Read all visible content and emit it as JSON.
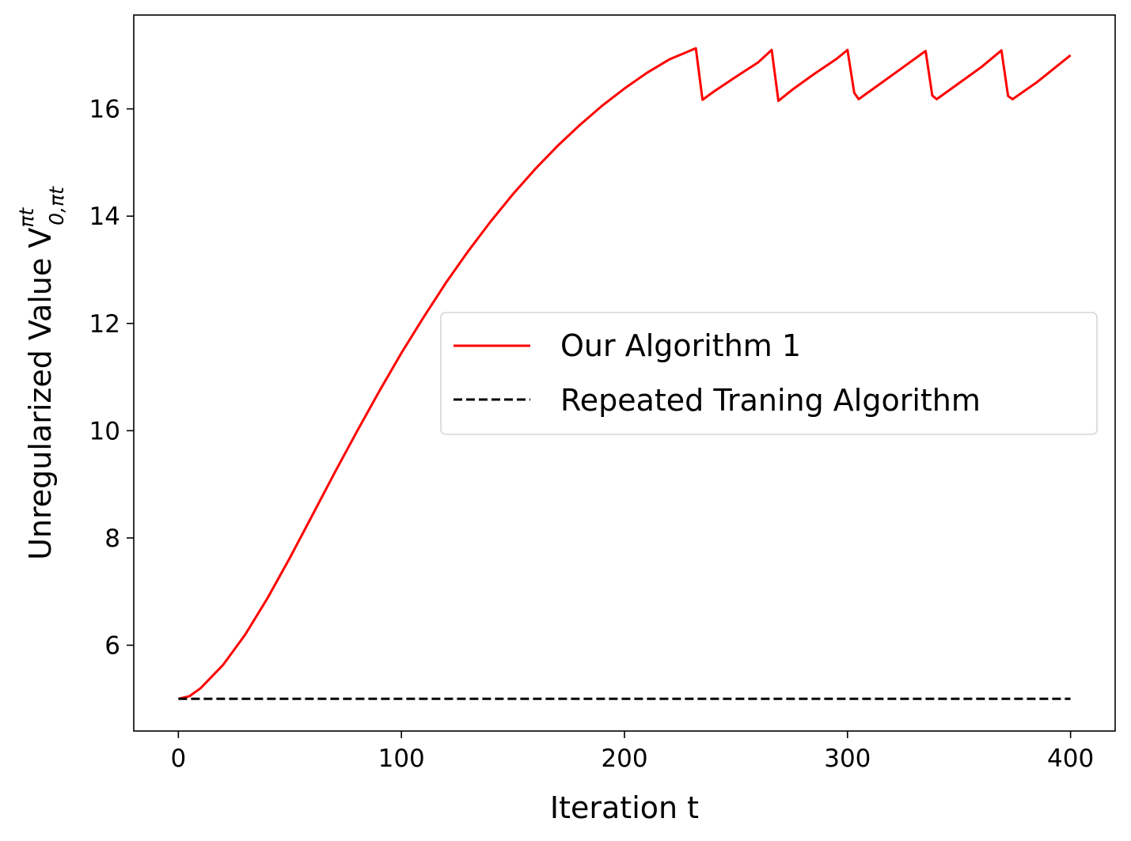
{
  "chart_data": {
    "type": "line",
    "xlabel": "Iteration t",
    "ylabel": "Unregularized Value V",
    "ylabel_sup": "πt",
    "ylabel_sub": "0,πt",
    "xlim": [
      -20,
      420
    ],
    "ylim": [
      4.4,
      17.75
    ],
    "xticks": [
      0,
      100,
      200,
      300,
      400
    ],
    "yticks": [
      6,
      8,
      10,
      12,
      14,
      16
    ],
    "grid": false,
    "legend_position": "center-right",
    "series": [
      {
        "name": "Our Algorithm 1",
        "color": "#ff0000",
        "style": "solid",
        "x": [
          0,
          5,
          10,
          20,
          30,
          40,
          50,
          60,
          70,
          80,
          90,
          100,
          110,
          120,
          130,
          140,
          150,
          160,
          170,
          180,
          190,
          200,
          210,
          220,
          232,
          235,
          240,
          250,
          260,
          266,
          269,
          275,
          285,
          295,
          300,
          303,
          305,
          315,
          325,
          335,
          338,
          340,
          350,
          360,
          369,
          372,
          374,
          385,
          400
        ],
        "y": [
          5.0,
          5.05,
          5.2,
          5.63,
          6.2,
          6.88,
          7.63,
          8.42,
          9.21,
          9.98,
          10.73,
          11.45,
          12.12,
          12.76,
          13.35,
          13.9,
          14.41,
          14.88,
          15.31,
          15.7,
          16.06,
          16.38,
          16.67,
          16.92,
          17.13,
          16.17,
          16.32,
          16.6,
          16.87,
          17.1,
          16.15,
          16.35,
          16.65,
          16.93,
          17.1,
          16.3,
          16.18,
          16.48,
          16.78,
          17.08,
          16.25,
          16.18,
          16.48,
          16.78,
          17.09,
          16.24,
          16.18,
          16.5,
          17.0
        ]
      },
      {
        "name": "Repeated Traning Algorithm",
        "color": "#000000",
        "style": "dashed",
        "x": [
          0,
          400
        ],
        "y": [
          5.0,
          5.0
        ]
      }
    ]
  }
}
